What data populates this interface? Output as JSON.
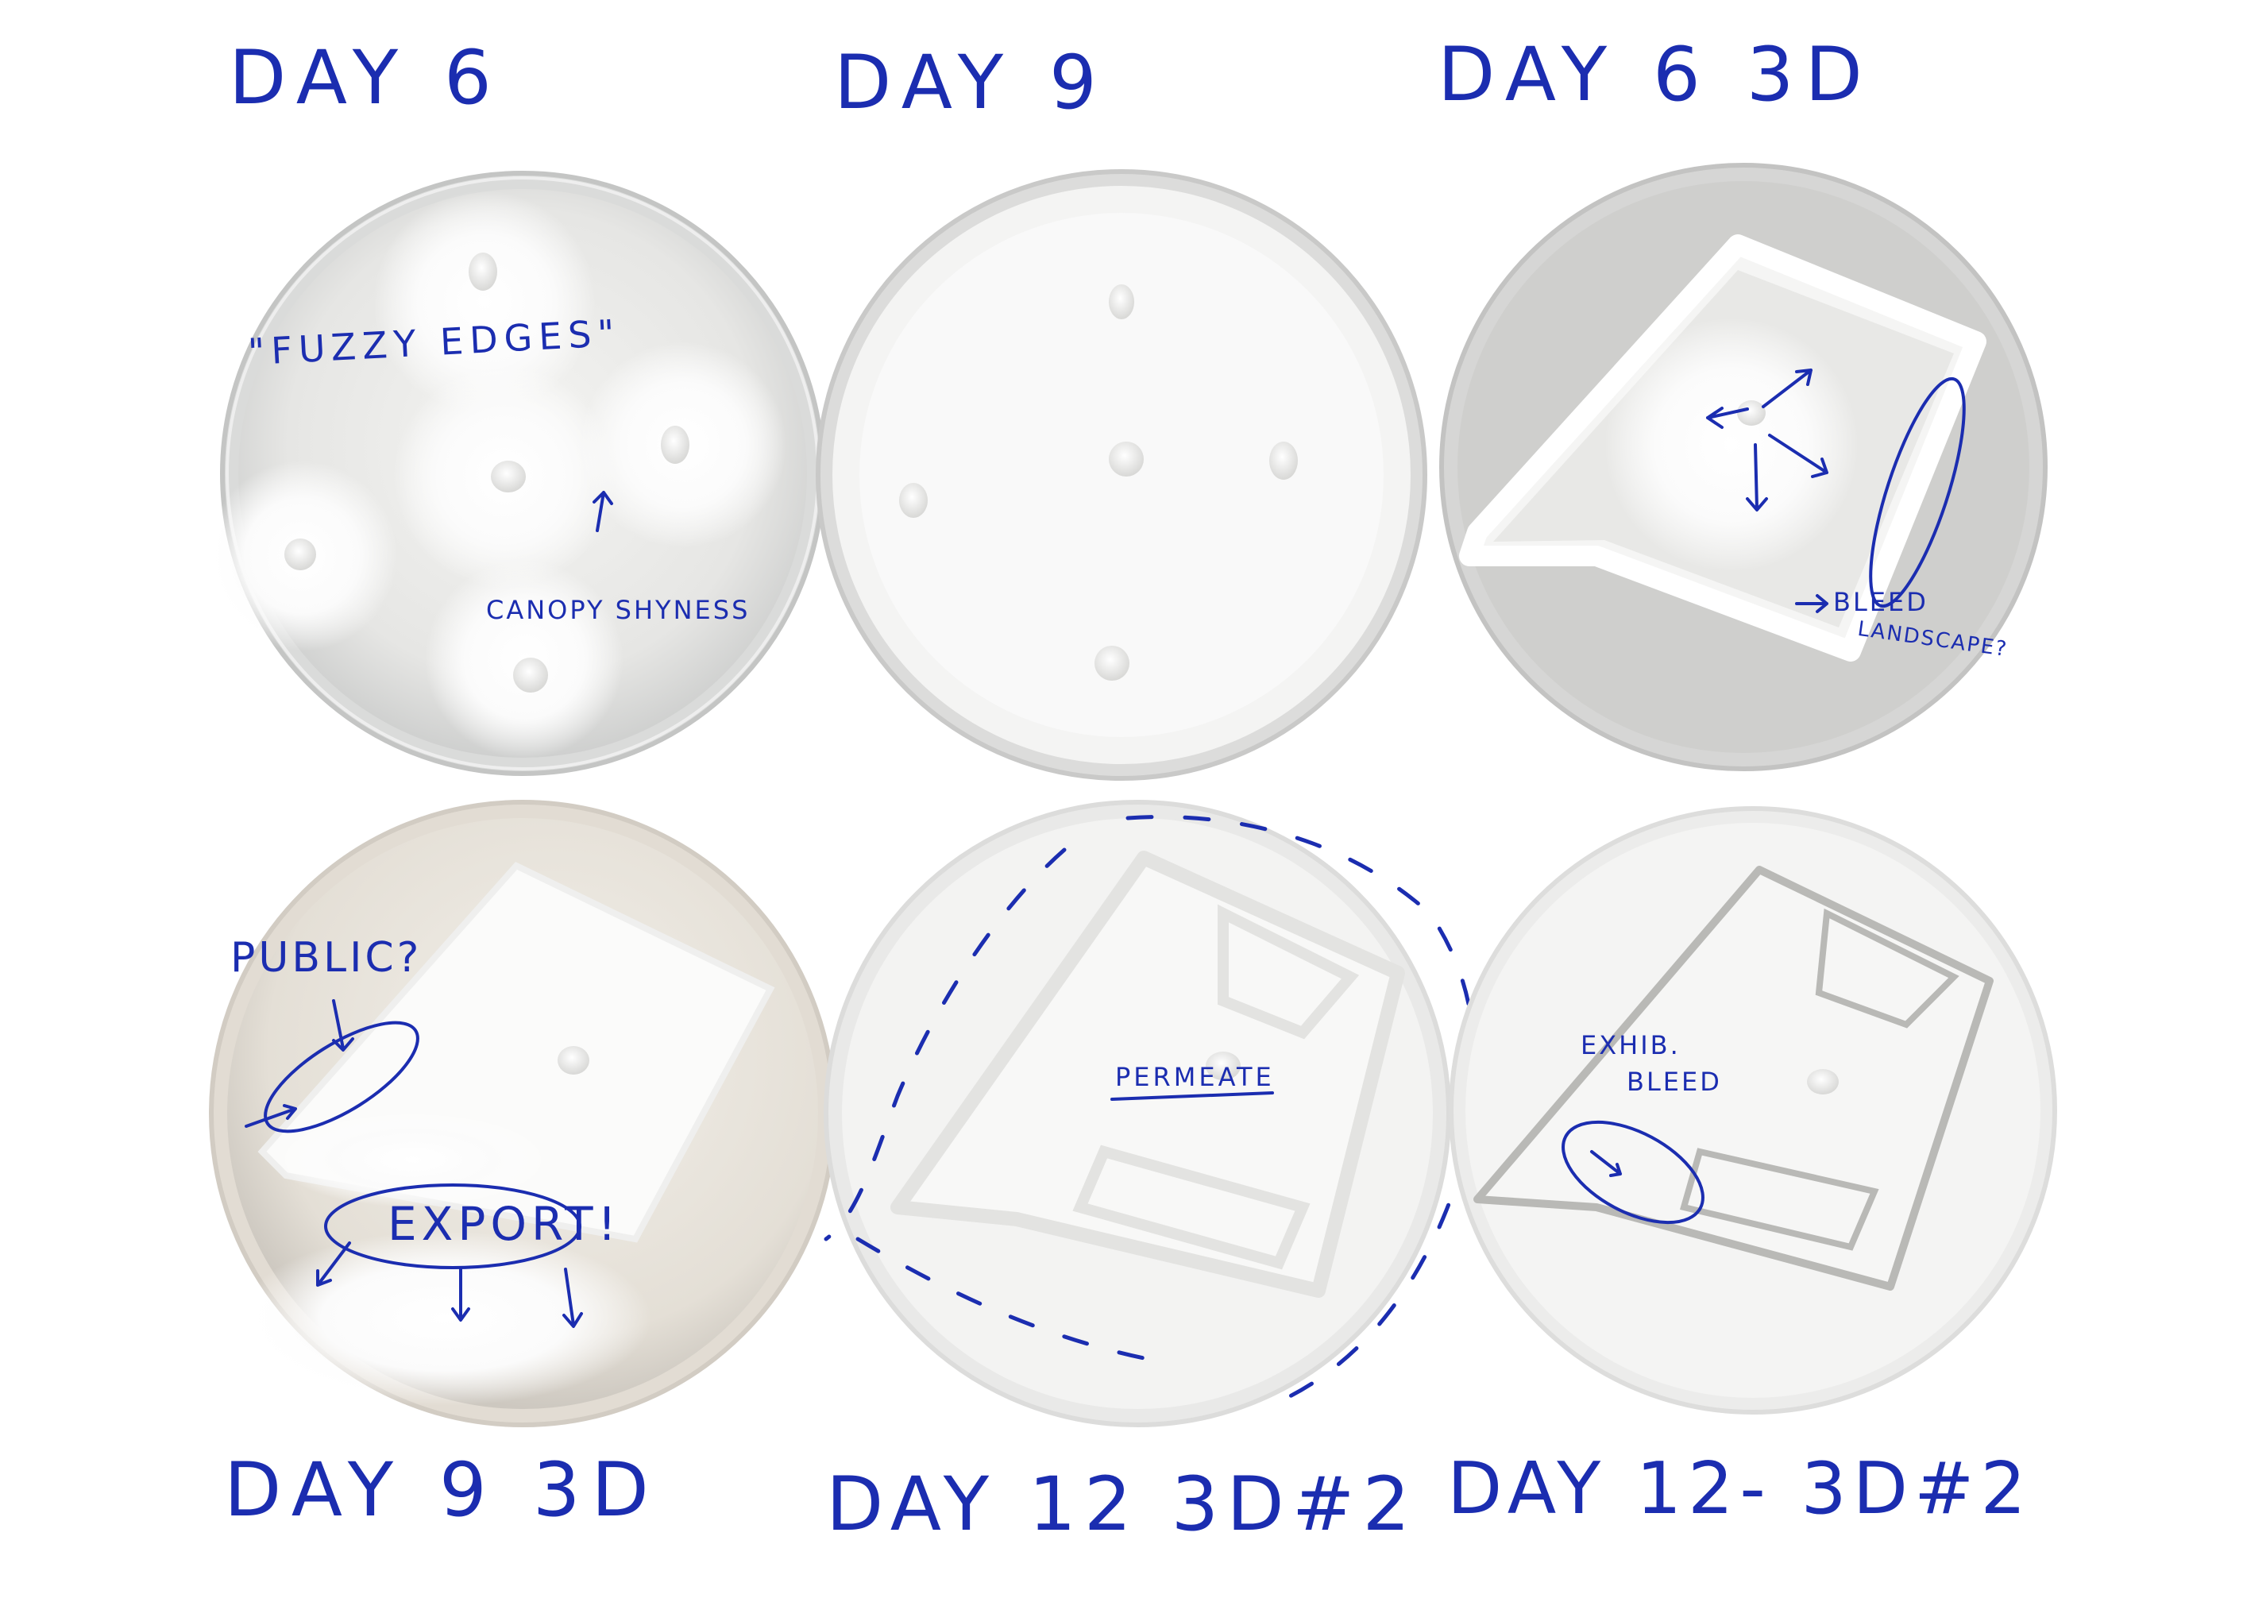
{
  "ink_color": "#1b2db0",
  "dishes": [
    {
      "label": "DAY 6",
      "notes": [
        "\"FUZZY EDGES\"",
        "CANOPY SHYNESS"
      ]
    },
    {
      "label": "DAY 9",
      "notes": []
    },
    {
      "label": "DAY 6 3D",
      "notes": [
        "BLEED",
        "LANDSCAPE?"
      ]
    },
    {
      "label": "DAY 9 3D",
      "notes": [
        "PUBLIC?",
        "EXPORT!"
      ]
    },
    {
      "label": "DAY 12 3D#2",
      "notes": [
        "PERMEATE"
      ]
    },
    {
      "label": "DAY 12- 3D#2",
      "notes": [
        "EXHIB.",
        "BLEED"
      ]
    }
  ]
}
